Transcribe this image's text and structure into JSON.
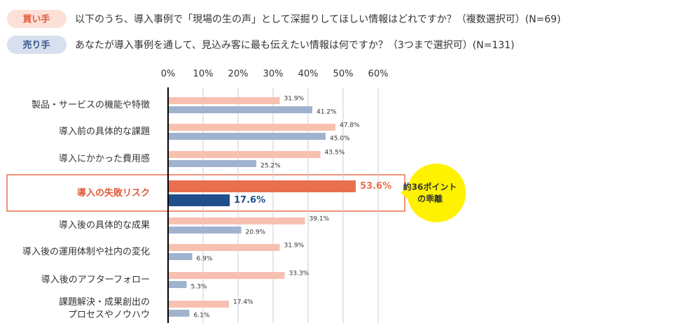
{
  "chart_data": {
    "type": "bar",
    "orientation": "horizontal",
    "legend": [
      {
        "label": "買い手",
        "text": "以下のうち、導入事例で「現場の生の声」として深掘りしてほしい情報はどれですか？（複数選択可）(N=69)"
      },
      {
        "label": "売り手",
        "text": "あなたが導入事例を通して、見込み客に最も伝えたい情報は何ですか？（3つまで選択可）(N=131)"
      }
    ],
    "categories": [
      "製品・サービスの機能や特徴",
      "導入前の具体的な課題",
      "導入にかかった費用感",
      "導入の失敗リスク",
      "導入後の具体的な成果",
      "導入後の運用体制や社内の変化",
      "導入後のアフターフォロー",
      "課題解決・成果創出の\nプロセスやノウハウ"
    ],
    "series": [
      {
        "name": "買い手",
        "color": "#f8c0b0",
        "highlight_color": "#e8704f",
        "values": [
          31.9,
          47.8,
          43.5,
          53.6,
          39.1,
          31.9,
          33.3,
          17.4
        ],
        "value_labels": [
          "31.9%",
          "47.8%",
          "43.5%",
          "53.6%",
          "39.1%",
          "31.9%",
          "33.3%",
          "17.4%"
        ]
      },
      {
        "name": "売り手",
        "color": "#9fb3cf",
        "highlight_color": "#1f4e8c",
        "values": [
          41.2,
          45.0,
          25.2,
          17.6,
          20.9,
          6.9,
          5.3,
          6.1
        ],
        "value_labels": [
          "41.2%",
          "45.0%",
          "25.2%",
          "17.6%",
          "20.9%",
          "6.9%",
          "5.3%",
          "6.1%"
        ]
      }
    ],
    "highlight_index": 3,
    "annotation": "約36ポイント\nの乖離",
    "xlim": [
      0,
      60
    ],
    "xticks": [
      {
        "value": 0,
        "label": "0%"
      },
      {
        "value": 10,
        "label": "10%"
      },
      {
        "value": 20,
        "label": "20%"
      },
      {
        "value": 30,
        "label": "30%"
      },
      {
        "value": 40,
        "label": "40%"
      },
      {
        "value": 50,
        "label": "50%"
      },
      {
        "value": 60,
        "label": "60%"
      }
    ],
    "grid": true
  }
}
